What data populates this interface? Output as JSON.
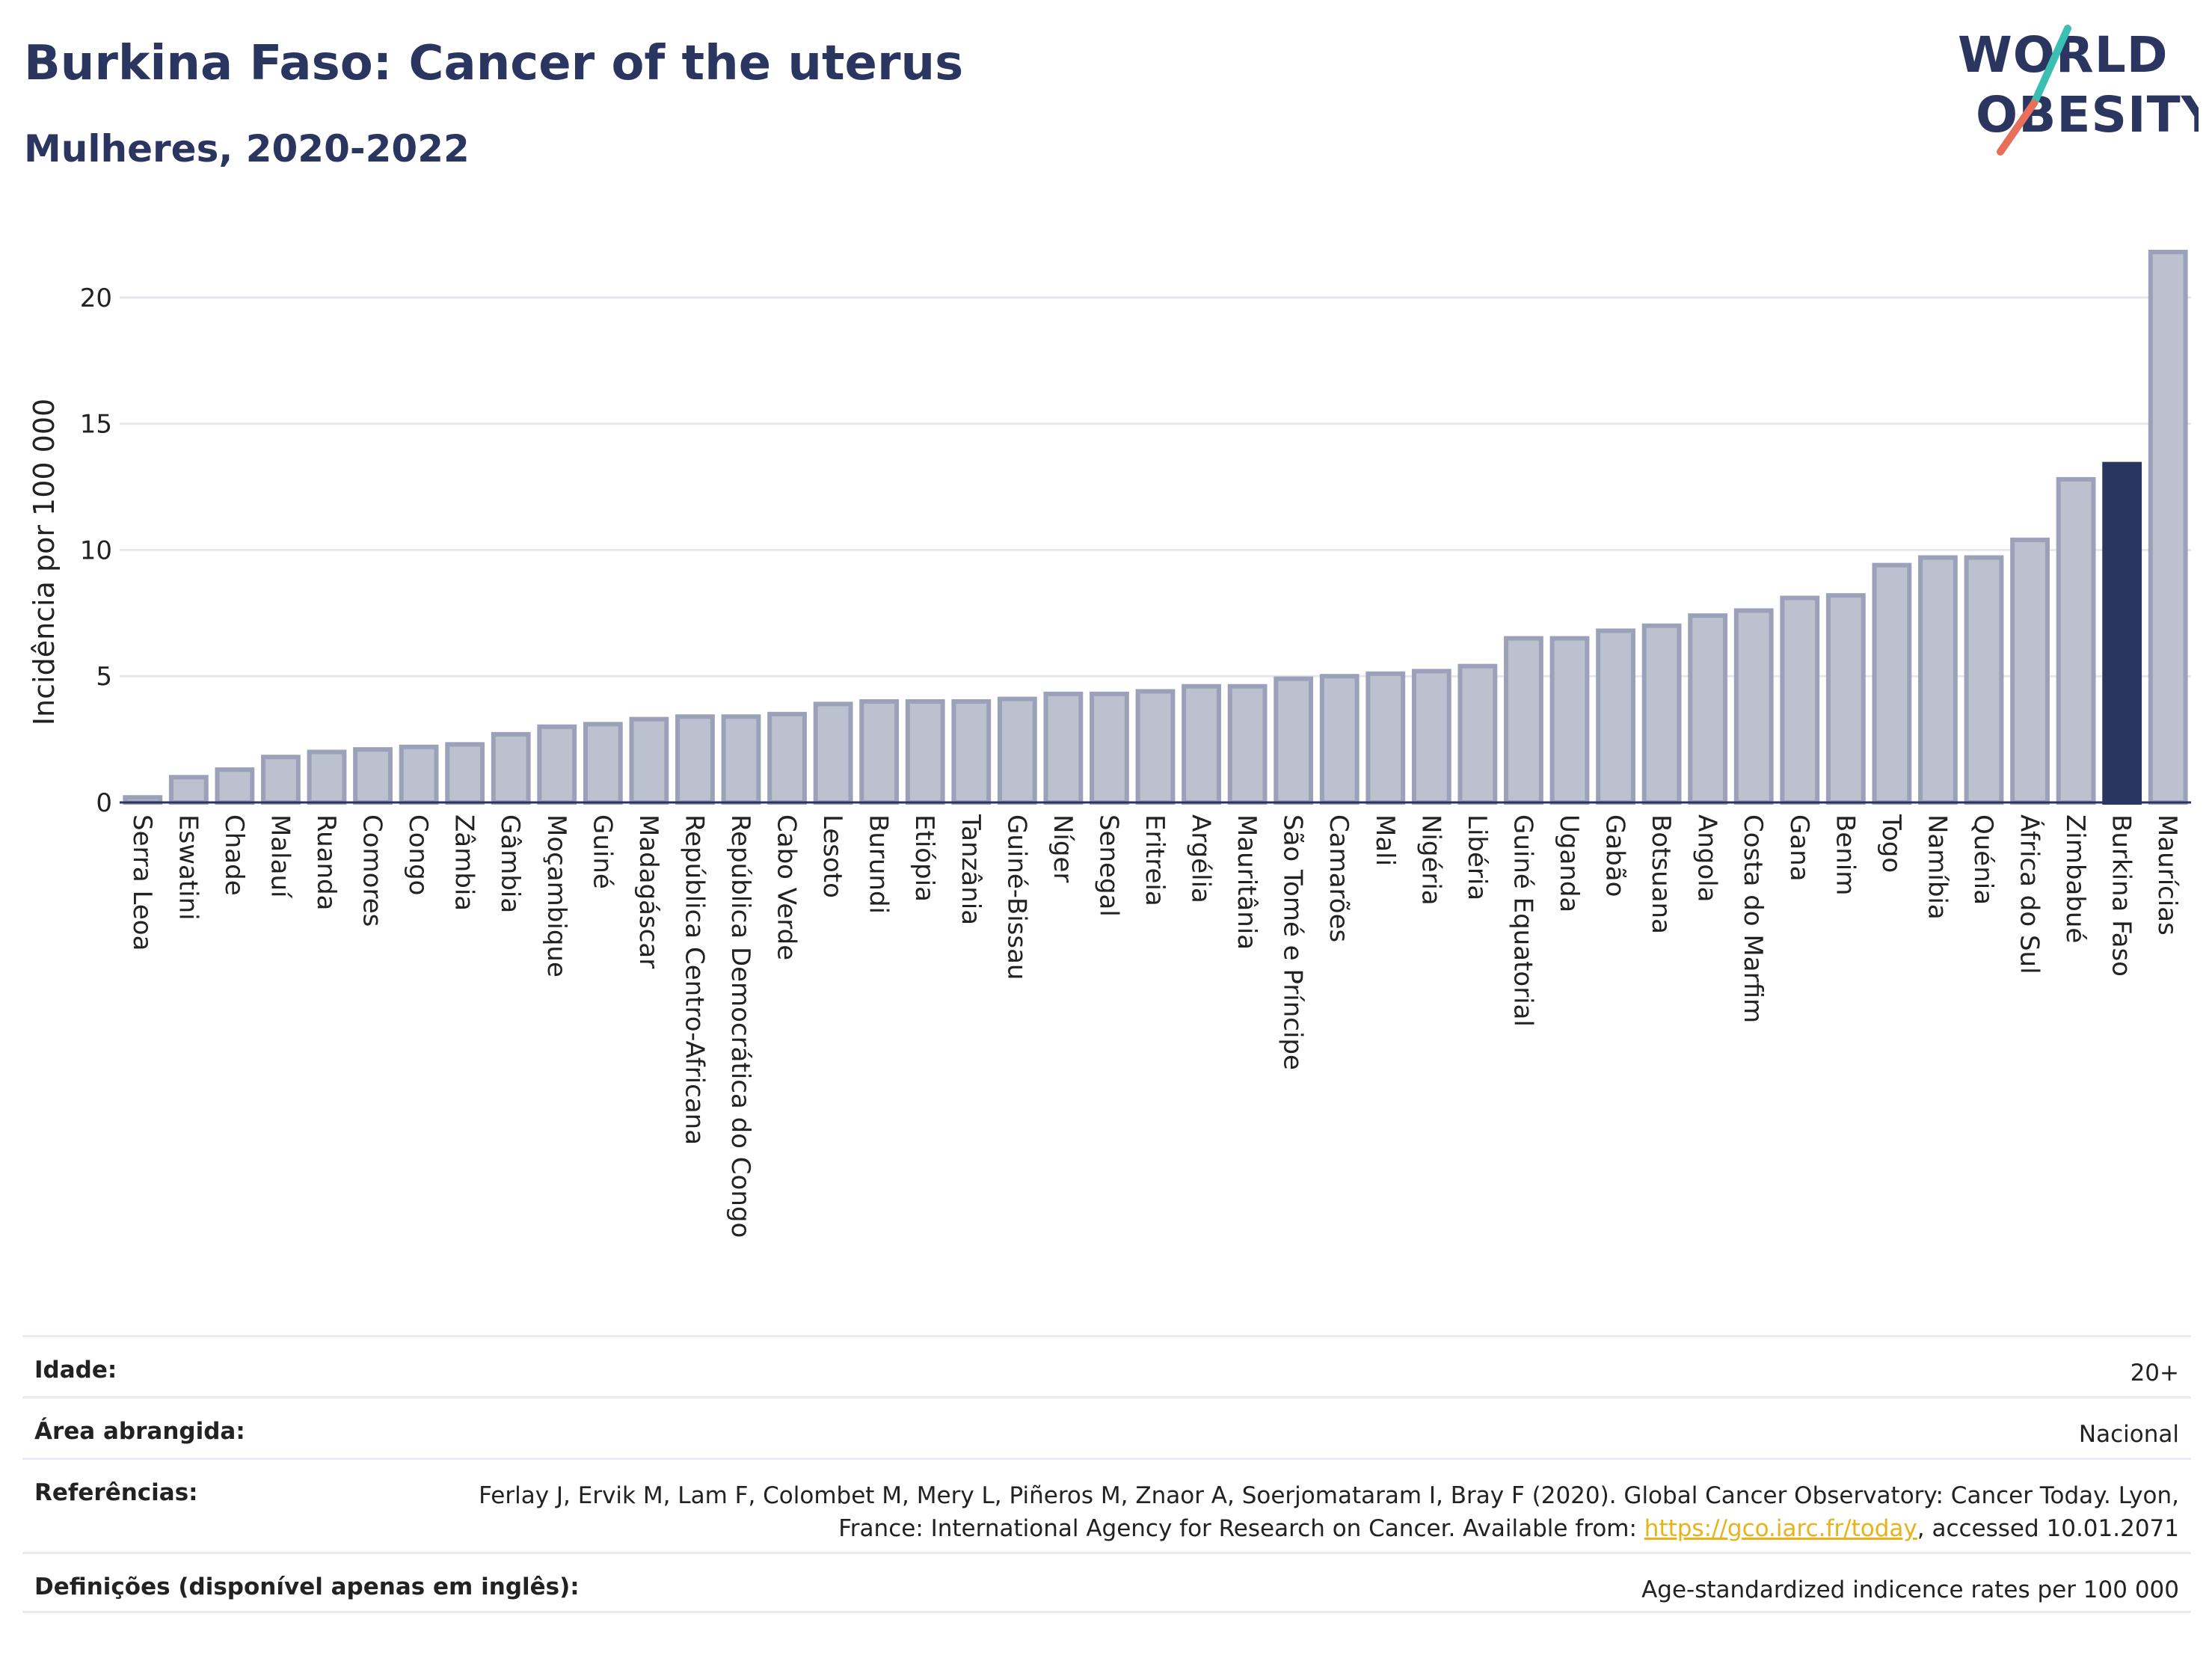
{
  "header": {
    "title": "Burkina Faso: Cancer of the uterus",
    "subtitle": "Mulheres, 2020-2022"
  },
  "logo": {
    "line1": "WORLD",
    "line2": "OBESITY"
  },
  "colors": {
    "bar_fill": "#bcc1d0",
    "bar_stroke": "#9aa1b8",
    "highlight": "#2a3560",
    "grid": "#e6e8ee",
    "logo_teal": "#3bbfb3",
    "logo_coral": "#e8705a"
  },
  "chart_data": {
    "type": "bar",
    "ylabel": "Incidência por 100 000",
    "ylim": [
      0,
      22.6
    ],
    "yticks": [
      0,
      5,
      10,
      15,
      20
    ],
    "grid": true,
    "highlight": "Burkina Faso",
    "categories": [
      "Serra Leoa",
      "Eswatini",
      "Chade",
      "Malauí",
      "Ruanda",
      "Comores",
      "Congo",
      "Zâmbia",
      "Gâmbia",
      "Moçambique",
      "Guiné",
      "Madagáscar",
      "República Centro-Africana",
      "República Democrática do Congo",
      "Cabo Verde",
      "Lesoto",
      "Burundi",
      "Etiópia",
      "Tanzânia",
      "Guiné-Bissau",
      "Níger",
      "Senegal",
      "Eritreia",
      "Argélia",
      "Mauritânia",
      "São Tomé e Príncipe",
      "Camarões",
      "Mali",
      "Nigéria",
      "Libéria",
      "Guiné Equatorial",
      "Uganda",
      "Gabão",
      "Botsuana",
      "Angola",
      "Costa do Marfim",
      "Gana",
      "Benim",
      "Togo",
      "Namíbia",
      "Quénia",
      "África do Sul",
      "Zimbabué",
      "Burkina Faso",
      "Maurícias"
    ],
    "values": [
      0.2,
      1.0,
      1.3,
      1.8,
      2.0,
      2.1,
      2.2,
      2.3,
      2.7,
      3.0,
      3.1,
      3.3,
      3.4,
      3.4,
      3.5,
      3.9,
      4.0,
      4.0,
      4.0,
      4.1,
      4.3,
      4.3,
      4.4,
      4.6,
      4.6,
      4.9,
      5.0,
      5.1,
      5.2,
      5.4,
      6.5,
      6.5,
      6.8,
      7.0,
      7.4,
      7.6,
      8.1,
      8.2,
      9.4,
      9.7,
      9.7,
      10.4,
      12.8,
      13.4,
      21.8
    ]
  },
  "info": {
    "age_label": "Idade:",
    "age_value": "20+",
    "area_label": "Área abrangida:",
    "area_value": "Nacional",
    "refs_label": "Referências:",
    "refs_text_1": "Ferlay J, Ervik M, Lam F, Colombet M, Mery L, Piñeros M, Znaor A, Soerjomataram I, Bray F (2020). Global Cancer Observatory: Cancer Today. Lyon, France: International Agency for Research on Cancer. Available from: ",
    "refs_link": "https://gco.iarc.fr/today",
    "refs_text_2": ", accessed 10.01.2071",
    "defs_label": "Definições (disponível apenas em inglês):",
    "defs_value": "Age-standardized indicence rates per 100 000"
  }
}
